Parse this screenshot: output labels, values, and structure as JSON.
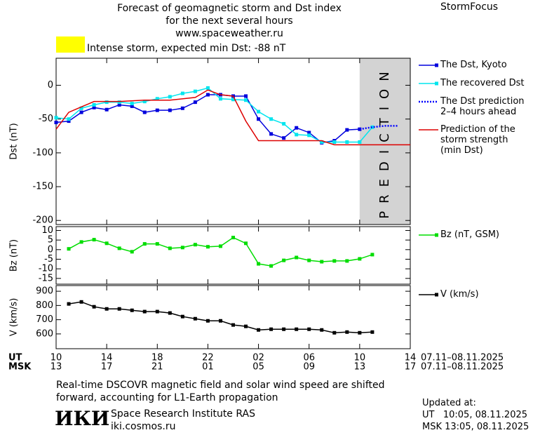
{
  "header": {
    "title": "Forecast of geomagnetic storm and Dst index\nfor the next several hours\nwww.spaceweather.ru",
    "brand": "StormFocus"
  },
  "chart_data": [
    {
      "type": "line",
      "y_label": "Dst (nT)",
      "annotation": "Intense storm, expected min Dst: -88 nT",
      "annotation_color": "#ffff00",
      "prediction_region": {
        "x": [
          24,
          28
        ],
        "label": "PREDICTION",
        "color": "#d3d3d3"
      },
      "xlim": [
        0,
        28
      ],
      "ylim": [
        -206,
        40
      ],
      "yticks": [
        -200,
        -150,
        -100,
        -50,
        0
      ],
      "series": [
        {
          "name": "The Dst, Kyoto",
          "color": "#0000dd",
          "marker": "square",
          "x": [
            0,
            1,
            2,
            3,
            4,
            5,
            6,
            7,
            8,
            9,
            10,
            11,
            12,
            13,
            14,
            15,
            16,
            17,
            18,
            19,
            20,
            21,
            22,
            23,
            24
          ],
          "values": [
            -55,
            -53,
            -40,
            -33,
            -36,
            -29,
            -31,
            -40,
            -37,
            -37,
            -34,
            -25,
            -14,
            -14,
            -16,
            -16,
            -50,
            -72,
            -78,
            -63,
            -70,
            -85,
            -82,
            -66,
            -65
          ]
        },
        {
          "name": "The recovered Dst",
          "color": "#00e5ee",
          "marker": "square",
          "x": [
            0,
            1,
            2,
            3,
            4,
            5,
            6,
            7,
            8,
            9,
            10,
            11,
            12,
            13,
            14,
            15,
            16,
            17,
            18,
            19,
            20,
            21,
            22,
            23,
            24,
            25
          ],
          "values": [
            -48,
            -50,
            -34,
            -29,
            -25,
            -25,
            -27,
            -24,
            -20,
            -17,
            -12,
            -9,
            -4,
            -20,
            -21,
            -22,
            -39,
            -50,
            -57,
            -73,
            -74,
            -84,
            -84,
            -84,
            -84,
            -62
          ]
        },
        {
          "name": "The Dst prediction\n2–4 hours ahead",
          "color": "#0000ff",
          "dash": true,
          "x": [
            24,
            25,
            26,
            27
          ],
          "values": [
            -65,
            -62,
            -60,
            -60
          ]
        },
        {
          "name": "Prediction of the\nstorm strength\n(min Dst)",
          "color": "#dd0000",
          "x": [
            0,
            1,
            2,
            3,
            5,
            7,
            9,
            11,
            12,
            13,
            14,
            15,
            16,
            17,
            21,
            22,
            28
          ],
          "values": [
            -65,
            -40,
            -32,
            -24,
            -24,
            -22,
            -22,
            -18,
            -7,
            -14,
            -16,
            -53,
            -82,
            -82,
            -82,
            -88,
            -88
          ]
        }
      ]
    },
    {
      "type": "line",
      "y_label": "Bz (nT)",
      "xlim": [
        0,
        28
      ],
      "ylim": [
        -18,
        12
      ],
      "yticks": [
        -15,
        -10,
        -5,
        0,
        5,
        10
      ],
      "series": [
        {
          "name": "Bz (nT, GSM)",
          "color": "#00dd00",
          "marker": "square",
          "x": [
            1,
            2,
            3,
            4,
            5,
            6,
            7,
            8,
            9,
            10,
            11,
            12,
            13,
            14,
            15,
            16,
            17,
            18,
            19,
            20,
            21,
            22,
            23,
            24,
            25
          ],
          "values": [
            0.4,
            4,
            5.2,
            3.3,
            0.7,
            -1.1,
            3,
            3,
            0.7,
            1.1,
            2.6,
            1.5,
            1.8,
            6.3,
            3.3,
            -7.4,
            -8.5,
            -5.6,
            -4.1,
            -5.6,
            -6.3,
            -5.9,
            -5.9,
            -4.8,
            -2.6
          ]
        }
      ]
    },
    {
      "type": "line",
      "y_label": "V (km/s)",
      "xlim": [
        0,
        28
      ],
      "ylim": [
        496,
        940
      ],
      "yticks": [
        600,
        700,
        800,
        900
      ],
      "x_label": "UT",
      "x_label_msk": "MSK",
      "date_range": "07.11–08.11.2025",
      "date_range_msk": "07.11–08.11.2025",
      "xticks": [
        {
          "value": 0,
          "label": "10"
        },
        {
          "value": 4,
          "label": "14"
        },
        {
          "value": 8,
          "label": "18"
        },
        {
          "value": 12,
          "label": "22"
        },
        {
          "value": 16,
          "label": "02"
        },
        {
          "value": 20,
          "label": "06"
        },
        {
          "value": 24,
          "label": "10"
        },
        {
          "value": 28,
          "label": "14"
        }
      ],
      "xticks_msk": [
        {
          "value": 0,
          "label": "13"
        },
        {
          "value": 4,
          "label": "17"
        },
        {
          "value": 8,
          "label": "21"
        },
        {
          "value": 12,
          "label": "01"
        },
        {
          "value": 16,
          "label": "05"
        },
        {
          "value": 20,
          "label": "09"
        },
        {
          "value": 24,
          "label": "13"
        },
        {
          "value": 28,
          "label": "17"
        }
      ],
      "series": [
        {
          "name": "V (km/s)",
          "color": "#000000",
          "marker": "square",
          "x": [
            1,
            2,
            3,
            4,
            5,
            6,
            7,
            8,
            9,
            10,
            11,
            12,
            13,
            14,
            15,
            16,
            17,
            18,
            19,
            20,
            21,
            22,
            23,
            24,
            25
          ],
          "values": [
            811,
            825,
            791,
            776,
            776,
            766,
            757,
            757,
            747,
            722,
            707,
            692,
            692,
            663,
            653,
            628,
            633,
            633,
            633,
            633,
            628,
            608,
            613,
            608,
            613
          ]
        }
      ]
    }
  ],
  "footer": {
    "note": "Real-time DSCOVR magnetic field and solar wind speed are shifted\nforward, accounting for L1-Earth propagation",
    "logo": "ИКИ",
    "institute": "Space Research Institute RAS",
    "site": "iki.cosmos.ru",
    "updated": "Updated at:",
    "updated_ut": "UT   10:05, 08.11.2025",
    "updated_msk": "MSK 13:05, 08.11.2025"
  }
}
